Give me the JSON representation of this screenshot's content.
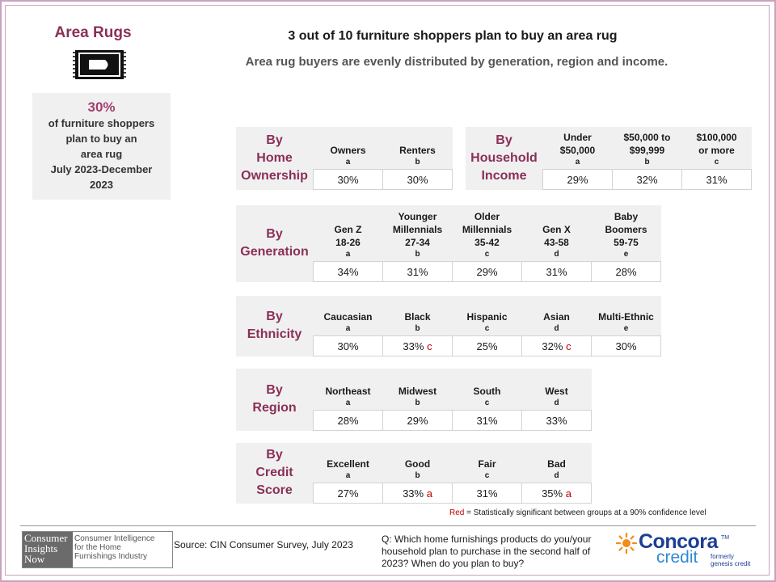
{
  "side": {
    "title": "Area Rugs",
    "pct": "30%",
    "line1": "of furniture shoppers",
    "line2": "plan to buy an",
    "line3": "area rug",
    "line4": "July 2023-December",
    "line5": "2023"
  },
  "headline": "3 out of 10 furniture shoppers plan to buy an area rug",
  "subhead": "Area rug buyers are evenly distributed by generation, region and income.",
  "home": {
    "label": [
      "By",
      "Home",
      "Ownership"
    ],
    "cols": [
      {
        "name": [
          "Owners"
        ],
        "code": "a",
        "value": "30%",
        "sig": ""
      },
      {
        "name": [
          "Renters"
        ],
        "code": "b",
        "value": "30%",
        "sig": ""
      }
    ]
  },
  "income": {
    "label": [
      "By",
      "Household",
      "Income"
    ],
    "cols": [
      {
        "name": [
          "Under",
          "$50,000"
        ],
        "code": "a",
        "value": "29%",
        "sig": ""
      },
      {
        "name": [
          "$50,000  to",
          "$99,999"
        ],
        "code": "b",
        "value": "32%",
        "sig": ""
      },
      {
        "name": [
          "$100,000",
          "or more"
        ],
        "code": "c",
        "value": "31%",
        "sig": ""
      }
    ]
  },
  "generation": {
    "label": [
      "By",
      "Generation"
    ],
    "cols": [
      {
        "name": [
          "Gen Z",
          "18-26"
        ],
        "code": "a",
        "value": "34%",
        "sig": ""
      },
      {
        "name": [
          "Younger",
          "Millennials",
          "27-34"
        ],
        "code": "b",
        "value": "31%",
        "sig": ""
      },
      {
        "name": [
          "Older",
          "Millennials",
          "35-42"
        ],
        "code": "c",
        "value": "29%",
        "sig": ""
      },
      {
        "name": [
          "Gen X",
          "43-58"
        ],
        "code": "d",
        "value": "31%",
        "sig": ""
      },
      {
        "name": [
          "Baby",
          "Boomers",
          "59-75"
        ],
        "code": "e",
        "value": "28%",
        "sig": ""
      }
    ]
  },
  "ethnicity": {
    "label": [
      "By",
      "Ethnicity"
    ],
    "cols": [
      {
        "name": [
          "Caucasian"
        ],
        "code": "a",
        "value": "30%",
        "sig": ""
      },
      {
        "name": [
          "Black"
        ],
        "code": "b",
        "value": "33%",
        "sig": "c"
      },
      {
        "name": [
          "Hispanic"
        ],
        "code": "c",
        "value": "25%",
        "sig": ""
      },
      {
        "name": [
          "Asian"
        ],
        "code": "d",
        "value": "32%",
        "sig": "c"
      },
      {
        "name": [
          "Multi-Ethnic"
        ],
        "code": "e",
        "value": "30%",
        "sig": ""
      }
    ]
  },
  "region": {
    "label": [
      "By",
      "Region"
    ],
    "cols": [
      {
        "name": [
          "Northeast"
        ],
        "code": "a",
        "value": "28%",
        "sig": ""
      },
      {
        "name": [
          "Midwest"
        ],
        "code": "b",
        "value": "29%",
        "sig": ""
      },
      {
        "name": [
          "South"
        ],
        "code": "c",
        "value": "31%",
        "sig": ""
      },
      {
        "name": [
          "West"
        ],
        "code": "d",
        "value": "33%",
        "sig": ""
      }
    ]
  },
  "credit": {
    "label": [
      "By",
      "Credit",
      "Score"
    ],
    "cols": [
      {
        "name": [
          "Excellent"
        ],
        "code": "a",
        "value": "27%",
        "sig": ""
      },
      {
        "name": [
          "Good"
        ],
        "code": "b",
        "value": "33%",
        "sig": "a"
      },
      {
        "name": [
          "Fair"
        ],
        "code": "c",
        "value": "31%",
        "sig": ""
      },
      {
        "name": [
          "Bad"
        ],
        "code": "d",
        "value": "35%",
        "sig": "a"
      }
    ]
  },
  "legend": {
    "red_word": "Red",
    "text": " = Statistically significant between groups at a 90% confidence level"
  },
  "logo": {
    "left": [
      "Consumer",
      "Insights",
      "Now"
    ],
    "right": [
      "Consumer Intelligence",
      "for the Home",
      "Furnishings Industry"
    ]
  },
  "source": "Source:  CIN Consumer Survey, July 2023",
  "question": "Q: Which home furnishings products do you/your household plan to purchase in the second half of 2023? When do you plan to buy?",
  "concora": {
    "name": "Concora",
    "tm": "TM",
    "credit": "credit",
    "formerly": "formerly",
    "formerly2": "genesis credit"
  },
  "colors": {
    "accent": "#8b2f57",
    "highlight": "#a2406e",
    "sig_red": "#c00000",
    "frame": "#c9a2bd",
    "brand_blue": "#1c3f94",
    "brand_light": "#2f8ad3",
    "brand_orange": "#f28c1a"
  }
}
